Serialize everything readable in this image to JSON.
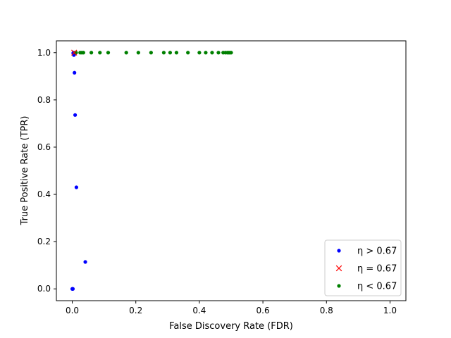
{
  "chart_data": {
    "type": "scatter",
    "title": "",
    "xlabel": "False Discovery Rate (FDR)",
    "ylabel": "True Positive Rate (TPR)",
    "xlim": [
      -0.05,
      1.05
    ],
    "ylim": [
      -0.05,
      1.05
    ],
    "xticks": [
      0.0,
      0.2,
      0.4,
      0.6,
      0.8,
      1.0
    ],
    "yticks": [
      0.0,
      0.2,
      0.4,
      0.6,
      0.8,
      1.0
    ],
    "xtick_labels": [
      "0.0",
      "0.2",
      "0.4",
      "0.6",
      "0.8",
      "1.0"
    ],
    "ytick_labels": [
      "0.0",
      "0.2",
      "0.4",
      "0.6",
      "0.8",
      "1.0"
    ],
    "grid": false,
    "legend_position": "lower-right",
    "series": [
      {
        "name": "η > 0.67",
        "legend_label": "η > 0.67",
        "marker": "dot",
        "color": "#0000ff",
        "points": [
          [
            0.0,
            0.0
          ],
          [
            0.001,
            0.0
          ],
          [
            0.002,
            0.0
          ],
          [
            0.041,
            0.114
          ],
          [
            0.013,
            0.43
          ],
          [
            0.009,
            0.736
          ],
          [
            0.007,
            0.915
          ],
          [
            0.005,
            0.99
          ],
          [
            0.008,
            0.995
          ],
          [
            0.004,
            1.0
          ],
          [
            0.003,
            0.998
          ]
        ]
      },
      {
        "name": "η = 0.67",
        "legend_label": "η = 0.67",
        "marker": "x",
        "color": "#ff0000",
        "points": [
          [
            0.006,
            1.0
          ]
        ]
      },
      {
        "name": "η < 0.67",
        "legend_label": "η < 0.67",
        "marker": "dot",
        "color": "#008000",
        "points": [
          [
            0.01,
            1.0
          ],
          [
            0.012,
            1.0
          ],
          [
            0.025,
            1.0
          ],
          [
            0.03,
            1.0
          ],
          [
            0.035,
            1.0
          ],
          [
            0.06,
            1.0
          ],
          [
            0.087,
            1.0
          ],
          [
            0.113,
            1.0
          ],
          [
            0.17,
            1.0
          ],
          [
            0.208,
            1.0
          ],
          [
            0.248,
            1.0
          ],
          [
            0.288,
            1.0
          ],
          [
            0.308,
            1.0
          ],
          [
            0.328,
            1.0
          ],
          [
            0.364,
            1.0
          ],
          [
            0.4,
            1.0
          ],
          [
            0.42,
            1.0
          ],
          [
            0.44,
            1.0
          ],
          [
            0.46,
            1.0
          ],
          [
            0.475,
            1.0
          ],
          [
            0.482,
            1.0
          ],
          [
            0.488,
            1.0
          ],
          [
            0.492,
            1.0
          ],
          [
            0.496,
            1.0
          ],
          [
            0.5,
            1.0
          ]
        ]
      }
    ]
  }
}
